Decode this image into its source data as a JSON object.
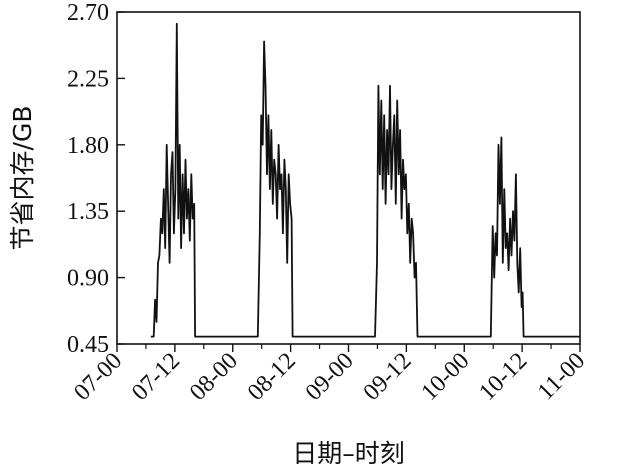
{
  "chart_data": {
    "type": "line",
    "xlabel": "日期–时刻",
    "ylabel": "节省内存/GB",
    "x_unit": "hours since 07-00",
    "xlim": [
      0,
      96
    ],
    "ylim": [
      0.45,
      2.7
    ],
    "x_ticks": [
      0,
      12,
      24,
      36,
      48,
      60,
      72,
      84,
      96
    ],
    "x_tick_labels": [
      "07-00",
      "07-12",
      "08-00",
      "08-12",
      "09-00",
      "09-12",
      "10-00",
      "10-12",
      "11-00"
    ],
    "y_ticks": [
      0.45,
      0.9,
      1.35,
      1.8,
      2.25,
      2.7
    ],
    "y_tick_labels": [
      "0.45",
      "0.90",
      "1.35",
      "1.80",
      "2.25",
      "2.70"
    ],
    "grid": false,
    "color": "#111111",
    "series": [
      {
        "x": [
          7,
          7.6,
          7.9,
          8.2,
          8.5,
          8.8,
          9.1,
          9.4,
          9.7,
          10.0,
          10.3,
          10.6,
          10.9,
          11.2,
          11.5,
          11.8,
          12.1,
          12.4,
          12.7,
          13.0,
          13.3,
          13.6,
          13.9,
          14.2,
          14.5,
          14.8,
          15.1,
          15.4,
          15.7,
          16.0,
          16.2,
          16.5,
          29.2,
          29.6,
          29.9,
          30.2,
          30.5,
          30.8,
          31.1,
          31.4,
          31.7,
          32.0,
          32.3,
          32.6,
          32.9,
          33.2,
          33.5,
          33.8,
          34.1,
          34.4,
          34.7,
          35.0,
          35.3,
          35.6,
          35.9,
          36.2,
          36.4,
          53.5,
          53.9,
          54.2,
          54.5,
          54.8,
          55.1,
          55.4,
          55.7,
          56.0,
          56.3,
          56.6,
          56.9,
          57.2,
          57.5,
          57.8,
          58.1,
          58.4,
          58.7,
          59.0,
          59.3,
          59.6,
          59.9,
          60.2,
          60.5,
          60.8,
          61.1,
          61.4,
          61.7,
          62.0,
          62.3,
          62.5,
          77.5,
          77.9,
          78.2,
          78.5,
          78.8,
          79.1,
          79.4,
          79.7,
          80.0,
          80.3,
          80.6,
          80.9,
          81.2,
          81.5,
          81.8,
          82.1,
          82.4,
          82.7,
          83.0,
          83.3,
          83.6,
          83.9,
          84.1,
          84.3,
          96
        ],
        "y": [
          0.5,
          0.5,
          0.75,
          0.6,
          1.0,
          1.05,
          1.3,
          1.2,
          1.5,
          1.1,
          1.8,
          1.4,
          1.0,
          1.6,
          1.75,
          1.2,
          1.5,
          2.62,
          1.3,
          1.8,
          1.1,
          1.6,
          1.2,
          1.7,
          1.3,
          1.5,
          1.15,
          1.6,
          1.3,
          1.4,
          0.5,
          0.5,
          0.5,
          1.2,
          2.0,
          1.8,
          2.5,
          2.2,
          1.6,
          2.0,
          1.5,
          1.9,
          1.4,
          1.7,
          1.6,
          1.3,
          1.8,
          1.5,
          1.6,
          1.2,
          1.7,
          1.5,
          1.0,
          1.6,
          1.4,
          1.3,
          0.5,
          0.5,
          1.0,
          2.2,
          1.6,
          2.1,
          1.5,
          2.0,
          1.4,
          1.9,
          1.6,
          2.2,
          1.5,
          1.8,
          2.0,
          1.4,
          2.1,
          1.6,
          1.9,
          1.3,
          1.7,
          1.5,
          1.6,
          1.2,
          1.4,
          1.0,
          1.3,
          1.2,
          0.9,
          1.0,
          0.5,
          0.5,
          0.5,
          1.25,
          0.9,
          1.2,
          1.05,
          1.8,
          1.4,
          1.85,
          1.0,
          1.5,
          1.1,
          1.2,
          0.95,
          1.3,
          1.05,
          1.35,
          1.15,
          1.6,
          1.0,
          0.8,
          1.1,
          0.7,
          0.8,
          0.5,
          0.5
        ]
      }
    ]
  }
}
